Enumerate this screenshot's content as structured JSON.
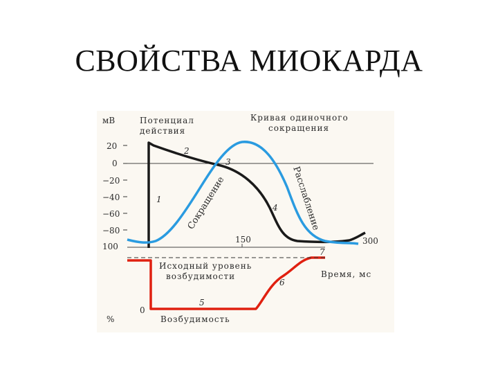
{
  "title": "СВОЙСТВА МИОКАРДА",
  "diagram": {
    "y_unit": "мВ",
    "y_ticks": [
      "20",
      "0",
      "−20",
      "−40",
      "−60",
      "−80",
      "100"
    ],
    "x_ticks": [
      "150",
      "300"
    ],
    "header_left_line1": "Потенциал",
    "header_left_line2": "действия",
    "header_right_line1": "Кривая одиночного",
    "header_right_line2": "сокращения",
    "label_contraction": "Сокращение",
    "label_relaxation": "Расслабление",
    "label_baseline_line1": "Исходный уровень",
    "label_baseline_line2": "возбудимости",
    "label_time": "Время, мс",
    "label_excitability": "Возбудимость",
    "label_percent": "%",
    "label_zero": "0",
    "curve_numbers": [
      "1",
      "2",
      "3",
      "4",
      "5",
      "6",
      "7"
    ],
    "colors": {
      "action_potential": "#1a1a1a",
      "contraction_curve": "#2a9be0",
      "excitability_curve": "#e02010",
      "background": "#fbf8f2"
    }
  }
}
